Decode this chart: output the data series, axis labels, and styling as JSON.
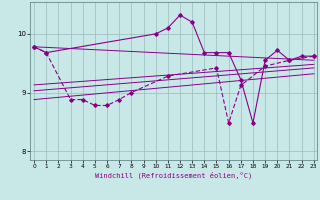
{
  "bg_color": "#c8e8e8",
  "line_color": "#880088",
  "grid_color": "#99bbbb",
  "xlabel": "Windchill (Refroidissement éolien,°C)",
  "ylim": [
    7.85,
    10.55
  ],
  "xlim": [
    -0.3,
    23.3
  ],
  "yticks": [
    8,
    9,
    10
  ],
  "xticks": [
    0,
    1,
    2,
    3,
    4,
    5,
    6,
    7,
    8,
    9,
    10,
    11,
    12,
    13,
    14,
    15,
    16,
    17,
    18,
    19,
    20,
    21,
    22,
    23
  ],
  "trend_lines": [
    [
      0,
      23,
      9.78,
      9.55
    ],
    [
      0,
      23,
      9.13,
      9.48
    ],
    [
      0,
      23,
      9.03,
      9.42
    ],
    [
      0,
      23,
      8.88,
      9.32
    ]
  ],
  "line_main_x": [
    0,
    1,
    10,
    11,
    12,
    13,
    14,
    15,
    16,
    17,
    18,
    19,
    20,
    21,
    22,
    23
  ],
  "line_main_y": [
    9.78,
    9.68,
    10.0,
    10.1,
    10.32,
    10.2,
    9.68,
    9.68,
    9.68,
    9.22,
    8.48,
    9.55,
    9.72,
    9.55,
    9.62,
    9.62
  ],
  "line2_x": [
    0,
    1,
    3,
    4,
    5,
    6,
    7,
    8,
    11,
    15,
    16,
    17,
    19,
    21,
    23
  ],
  "line2_y": [
    9.78,
    9.68,
    8.88,
    8.88,
    8.78,
    8.78,
    8.88,
    9.0,
    9.28,
    9.42,
    8.48,
    9.12,
    9.45,
    9.55,
    9.62
  ]
}
